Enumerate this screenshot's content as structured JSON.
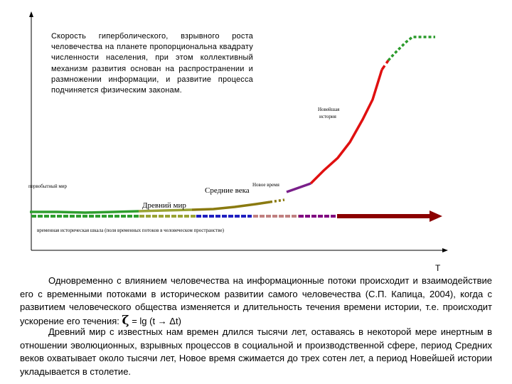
{
  "diagram": {
    "quote": "Скорость гиперболического, взрывного роста человечества на планете пропорциональна квадрату численности населения, при этом коллективный механизм развития основан на распространении и размножении информации, и развитие процесса подчиняется физическим законам.",
    "labels": {
      "primordial": "первобытный мир",
      "ancient": "Древний мир",
      "middle_ages": "Средние века",
      "new_time": "Новое время",
      "newest_line1": "Новейшая",
      "newest_line2": "история",
      "time_scale": "временная историческая шкала (поля временных потоков в человеческом пространстве)",
      "t_axis": "T"
    },
    "colors": {
      "primordial": "#2e9e2e",
      "ancient": "#9aa335",
      "middle_ages": "#8a7a10",
      "new_time": "#7a1f8a",
      "newest": "#e01010",
      "future": "#2a9a2a",
      "arrow": "#8b0000",
      "band_blue": "#2020c0",
      "band_pink": "#c08080",
      "band_purple": "#800080"
    }
  },
  "text": {
    "p1": "Одновременно с влиянием человечества на информационные потоки происходит и взаимодействие его с временными потоками в историческом развитии самого человечества (С.П. Капица, 2004), когда с развитием человеческого общества изменяется и длительность течения времени истории, т.е. происходит ускорение его течения:",
    "formula_symbol": "ζ",
    "formula_rest": " = lg (t → Δt)",
    "p2": "Древний мир с известных нам времен длился тысячи лет, оставаясь в некоторой мере инертным в отношении эволюционных, взрывных процессов в социальной и производственной сфере, период Средних веков охватывает около тысячи лет, Новое время сжимается до трех сотен лет, а период Новейшей истории укладывается в столетие."
  }
}
